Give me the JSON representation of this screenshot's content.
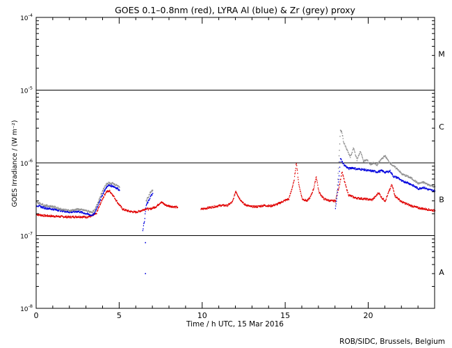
{
  "chart_data": {
    "type": "scatter",
    "title": "GOES 0.1–0.8nm (red), LYRA Al (blue) & Zr (grey) proxy",
    "xlabel": "Time / h UTC, 15 Mar 2016",
    "ylabel": "GOES Irradiance / (W m⁻²)",
    "credit": "ROB/SIDC, Brussels, Belgium",
    "xlim": [
      0,
      24
    ],
    "ylim_log10": [
      -8,
      -4
    ],
    "x_ticks": [
      0,
      5,
      10,
      15,
      20
    ],
    "y_tick_labels": [
      {
        "base": "10",
        "exp": "-4",
        "log": -4
      },
      {
        "base": "10",
        "exp": "-5",
        "log": -5
      },
      {
        "base": "10",
        "exp": "-6",
        "log": -6
      },
      {
        "base": "10",
        "exp": "-7",
        "log": -7
      },
      {
        "base": "10",
        "exp": "-8",
        "log": -8
      }
    ],
    "flare_class_lines_log10": [
      -5,
      -6,
      -7
    ],
    "flare_classes": [
      {
        "label": "M",
        "log": -4.5
      },
      {
        "label": "C",
        "log": -5.5
      },
      {
        "label": "B",
        "log": -6.5
      },
      {
        "label": "A",
        "log": -7.5
      }
    ],
    "colors": {
      "goes": "#e00000",
      "al": "#0000dd",
      "zr": "#909090",
      "grid": "#000000"
    },
    "series": [
      {
        "name": "GOES 0.1-0.8nm",
        "color_key": "goes",
        "segments": [
          [
            [
              0,
              1.95e-07
            ],
            [
              0.5,
              1.88e-07
            ],
            [
              1,
              1.85e-07
            ],
            [
              1.5,
              1.82e-07
            ],
            [
              2,
              1.8e-07
            ],
            [
              2.5,
              1.82e-07
            ],
            [
              3,
              1.8e-07
            ],
            [
              3.3,
              1.85e-07
            ],
            [
              3.6,
              2e-07
            ],
            [
              3.8,
              2.6e-07
            ],
            [
              4.0,
              3.3e-07
            ],
            [
              4.2,
              4e-07
            ],
            [
              4.4,
              4.1e-07
            ],
            [
              4.6,
              3.6e-07
            ],
            [
              4.9,
              2.8e-07
            ],
            [
              5.2,
              2.3e-07
            ],
            [
              5.6,
              2.15e-07
            ],
            [
              6,
              2.1e-07
            ],
            [
              6.3,
              2.2e-07
            ],
            [
              6.6,
              2.35e-07
            ],
            [
              6.8,
              2.3e-07
            ],
            [
              7.2,
              2.5e-07
            ],
            [
              7.5,
              2.9e-07
            ],
            [
              7.8,
              2.6e-07
            ],
            [
              8.2,
              2.5e-07
            ],
            [
              8.5,
              2.45e-07
            ]
          ],
          [
            [
              9.9,
              2.3e-07
            ],
            [
              10.3,
              2.4e-07
            ],
            [
              10.7,
              2.5e-07
            ],
            [
              11.1,
              2.6e-07
            ],
            [
              11.5,
              2.6e-07
            ],
            [
              11.8,
              2.9e-07
            ],
            [
              12.0,
              4.1e-07
            ],
            [
              12.2,
              3.3e-07
            ],
            [
              12.5,
              2.7e-07
            ],
            [
              12.9,
              2.5e-07
            ],
            [
              13.3,
              2.5e-07
            ],
            [
              13.7,
              2.6e-07
            ],
            [
              14.1,
              2.55e-07
            ],
            [
              14.5,
              2.7e-07
            ],
            [
              14.9,
              3e-07
            ],
            [
              15.2,
              3.2e-07
            ],
            [
              15.5,
              5.5e-07
            ],
            [
              15.65,
              1e-06
            ],
            [
              15.8,
              5e-07
            ],
            [
              16.0,
              3.2e-07
            ],
            [
              16.3,
              3e-07
            ],
            [
              16.5,
              3.4e-07
            ],
            [
              16.7,
              4.5e-07
            ],
            [
              16.85,
              6.5e-07
            ],
            [
              17.0,
              4e-07
            ],
            [
              17.3,
              3.2e-07
            ],
            [
              17.7,
              3e-07
            ],
            [
              18.0,
              3e-07
            ],
            [
              18.2,
              4.5e-07
            ],
            [
              18.4,
              7.5e-07
            ],
            [
              18.6,
              5e-07
            ],
            [
              18.8,
              3.6e-07
            ],
            [
              19.2,
              3.3e-07
            ],
            [
              19.7,
              3.2e-07
            ],
            [
              20.2,
              3.1e-07
            ],
            [
              20.4,
              3.4e-07
            ],
            [
              20.6,
              3.9e-07
            ],
            [
              20.8,
              3.3e-07
            ],
            [
              21.0,
              3e-07
            ],
            [
              21.2,
              3.9e-07
            ],
            [
              21.4,
              5e-07
            ],
            [
              21.6,
              3.5e-07
            ],
            [
              22.0,
              2.9e-07
            ],
            [
              22.5,
              2.6e-07
            ],
            [
              23.0,
              2.4e-07
            ],
            [
              23.5,
              2.3e-07
            ],
            [
              24,
              2.2e-07
            ]
          ]
        ]
      },
      {
        "name": "LYRA Al proxy",
        "color_key": "al",
        "segments": [
          [
            [
              0,
              2.6e-07
            ],
            [
              0.5,
              2.4e-07
            ],
            [
              1,
              2.3e-07
            ],
            [
              1.5,
              2.2e-07
            ],
            [
              2,
              2.1e-07
            ],
            [
              2.5,
              2.15e-07
            ],
            [
              3,
              2e-07
            ],
            [
              3.3,
              1.9e-07
            ],
            [
              3.5,
              2e-07
            ],
            [
              3.8,
              3e-07
            ],
            [
              4.1,
              4.2e-07
            ],
            [
              4.3,
              4.9e-07
            ],
            [
              4.6,
              4.8e-07
            ],
            [
              4.9,
              4.4e-07
            ],
            [
              5.0,
              4.2e-07
            ]
          ],
          [
            [
              6.4,
              1.2e-07
            ],
            [
              6.5,
              1.6e-07
            ],
            [
              6.6,
              2.6e-07
            ],
            [
              6.75,
              3e-07
            ],
            [
              6.85,
              3.4e-07
            ],
            [
              7.0,
              3.8e-07
            ]
          ],
          [
            [
              18.0,
              2.3e-07
            ],
            [
              18.1,
              3.5e-07
            ],
            [
              18.2,
              6e-07
            ],
            [
              18.3,
              1.15e-06
            ],
            [
              18.5,
              9.5e-07
            ],
            [
              18.8,
              8.3e-07
            ],
            [
              19.0,
              8.6e-07
            ],
            [
              19.3,
              8.2e-07
            ],
            [
              19.5,
              8.2e-07
            ],
            [
              19.8,
              8e-07
            ],
            [
              20.0,
              7.8e-07
            ],
            [
              20.3,
              7.7e-07
            ],
            [
              20.5,
              7.5e-07
            ],
            [
              20.8,
              7.8e-07
            ],
            [
              21.0,
              7.4e-07
            ],
            [
              21.3,
              7.7e-07
            ],
            [
              21.5,
              6.5e-07
            ],
            [
              21.8,
              6.2e-07
            ],
            [
              22.0,
              5.6e-07
            ],
            [
              22.3,
              5.4e-07
            ],
            [
              22.6,
              5e-07
            ],
            [
              23.0,
              4.4e-07
            ],
            [
              23.3,
              4.6e-07
            ],
            [
              23.6,
              4.3e-07
            ],
            [
              24,
              4.1e-07
            ]
          ]
        ]
      },
      {
        "name": "LYRA Zr proxy",
        "color_key": "zr",
        "segments": [
          [
            [
              0,
              2.9e-07
            ],
            [
              0.5,
              2.6e-07
            ],
            [
              1,
              2.5e-07
            ],
            [
              1.5,
              2.3e-07
            ],
            [
              2,
              2.2e-07
            ],
            [
              2.5,
              2.3e-07
            ],
            [
              3,
              2.2e-07
            ],
            [
              3.3,
              2.1e-07
            ],
            [
              3.5,
              2.2e-07
            ],
            [
              3.8,
              3.3e-07
            ],
            [
              4.1,
              4.7e-07
            ],
            [
              4.3,
              5.3e-07
            ],
            [
              4.6,
              5.2e-07
            ],
            [
              4.9,
              4.8e-07
            ],
            [
              5.0,
              4.6e-07
            ]
          ],
          [
            [
              6.6,
              3e-07
            ],
            [
              6.75,
              3.5e-07
            ],
            [
              6.85,
              3.9e-07
            ],
            [
              7.0,
              4.2e-07
            ]
          ],
          [
            [
              18.0,
              2.6e-07
            ],
            [
              18.1,
              4.2e-07
            ],
            [
              18.2,
              1e-06
            ],
            [
              18.3,
              2.8e-06
            ],
            [
              18.4,
              2.6e-06
            ],
            [
              18.5,
              1.9e-06
            ],
            [
              18.7,
              1.5e-06
            ],
            [
              18.9,
              1.2e-06
            ],
            [
              19.1,
              1.6e-06
            ],
            [
              19.3,
              1.1e-06
            ],
            [
              19.5,
              1.45e-06
            ],
            [
              19.7,
              1.05e-06
            ],
            [
              19.9,
              1.1e-06
            ],
            [
              20.1,
              9.5e-07
            ],
            [
              20.3,
              1e-06
            ],
            [
              20.5,
              9.3e-07
            ],
            [
              20.8,
              1.15e-06
            ],
            [
              21.0,
              1.25e-06
            ],
            [
              21.2,
              1.05e-06
            ],
            [
              21.5,
              9e-07
            ],
            [
              21.8,
              8e-07
            ],
            [
              22.0,
              7e-07
            ],
            [
              22.3,
              6.6e-07
            ],
            [
              22.6,
              6.1e-07
            ],
            [
              23.0,
              5.2e-07
            ],
            [
              23.3,
              5.4e-07
            ],
            [
              23.6,
              5e-07
            ],
            [
              24,
              4.7e-07
            ]
          ]
        ]
      }
    ]
  }
}
